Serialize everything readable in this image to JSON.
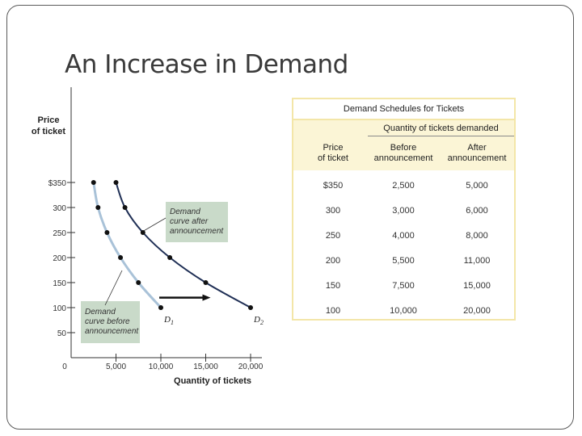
{
  "slide": {
    "title": "An Increase in Demand"
  },
  "chart_data": {
    "type": "line",
    "ylabel_line1": "Price",
    "ylabel_line2": "of ticket",
    "xlabel": "Quantity of tickets",
    "xlim": [
      0,
      20000
    ],
    "ylim": [
      0,
      350
    ],
    "x_ticks": [
      0,
      5000,
      10000,
      15000,
      20000
    ],
    "x_tick_labels": [
      "0",
      "5,000",
      "10,000",
      "15,000",
      "20,000"
    ],
    "y_ticks": [
      50,
      100,
      150,
      200,
      250,
      300,
      350
    ],
    "y_tick_labels": [
      "50",
      "100",
      "150",
      "200",
      "250",
      "300",
      "$350"
    ],
    "series": [
      {
        "name": "D1",
        "color": "#a9c2d8",
        "prices": [
          350,
          300,
          250,
          200,
          150,
          100
        ],
        "quantities": [
          2500,
          3000,
          4000,
          5500,
          7500,
          10000
        ]
      },
      {
        "name": "D2",
        "color": "#1f2f55",
        "prices": [
          350,
          300,
          250,
          200,
          150,
          100
        ],
        "quantities": [
          5000,
          6000,
          8000,
          11000,
          15000,
          20000
        ]
      }
    ],
    "series_labels": {
      "d1_letter": "D",
      "d1_sub": "1",
      "d2_letter": "D",
      "d2_sub": "2"
    },
    "annotations": {
      "after": {
        "lines": [
          "Demand",
          "curve after",
          "announcement"
        ]
      },
      "before": {
        "lines": [
          "Demand",
          "curve before",
          "announcement"
        ]
      }
    },
    "shift_arrow": {
      "from": 10000,
      "to": 15000,
      "price": 120
    },
    "legend": "none",
    "grid": false
  },
  "table": {
    "title": "Demand Schedules for Tickets",
    "group_header": "Quantity of tickets demanded",
    "columns": [
      {
        "line1": "Price",
        "line2": "of ticket"
      },
      {
        "line1": "Before",
        "line2": "announcement"
      },
      {
        "line1": "After",
        "line2": "announcement"
      }
    ],
    "rows": [
      [
        "$350",
        "2,500",
        "5,000"
      ],
      [
        "300",
        "3,000",
        "6,000"
      ],
      [
        "250",
        "4,000",
        "8,000"
      ],
      [
        "200",
        "5,500",
        "11,000"
      ],
      [
        "150",
        "7,500",
        "15,000"
      ],
      [
        "100",
        "10,000",
        "20,000"
      ]
    ]
  }
}
